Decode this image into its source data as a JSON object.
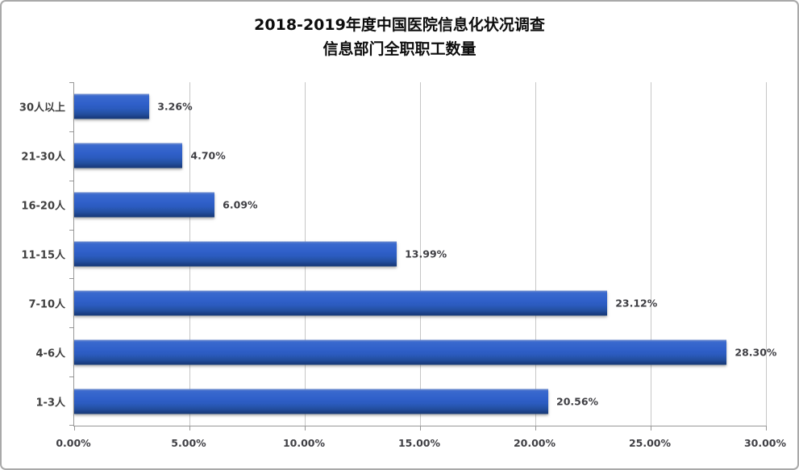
{
  "chart_data": {
    "type": "bar",
    "orientation": "horizontal",
    "title": "2018-2019年度中国医院信息化状况调查",
    "subtitle": "信息部门全职职工数量",
    "categories": [
      "30人以上",
      "21-30人",
      "16-20人",
      "11-15人",
      "7-10人",
      "4-6人",
      "1-3人"
    ],
    "values": [
      3.26,
      4.7,
      6.09,
      13.99,
      23.12,
      28.3,
      20.56
    ],
    "value_labels": [
      "3.26%",
      "4.70%",
      "6.09%",
      "13.99%",
      "23.12%",
      "28.30%",
      "20.56%"
    ],
    "xlabel": "",
    "ylabel": "",
    "xlim": [
      0,
      30
    ],
    "x_tick_step": 5,
    "x_tick_labels": [
      "0.00%",
      "5.00%",
      "10.00%",
      "15.00%",
      "20.00%",
      "25.00%",
      "30.00%"
    ],
    "grid": "vertical-gridlines-on",
    "legend": "none",
    "colors": {
      "bar_main": "#2e5fc6",
      "bar_top_sheen": "#6e8ccd",
      "bar_bottom": "#173a76",
      "gridline": "#c6c6c6",
      "axis": "#979797",
      "label_text": "#3f3f44",
      "title_text": "#0d0d0d",
      "frame_border": "#a9a9a9",
      "background": "#ffffff"
    }
  }
}
